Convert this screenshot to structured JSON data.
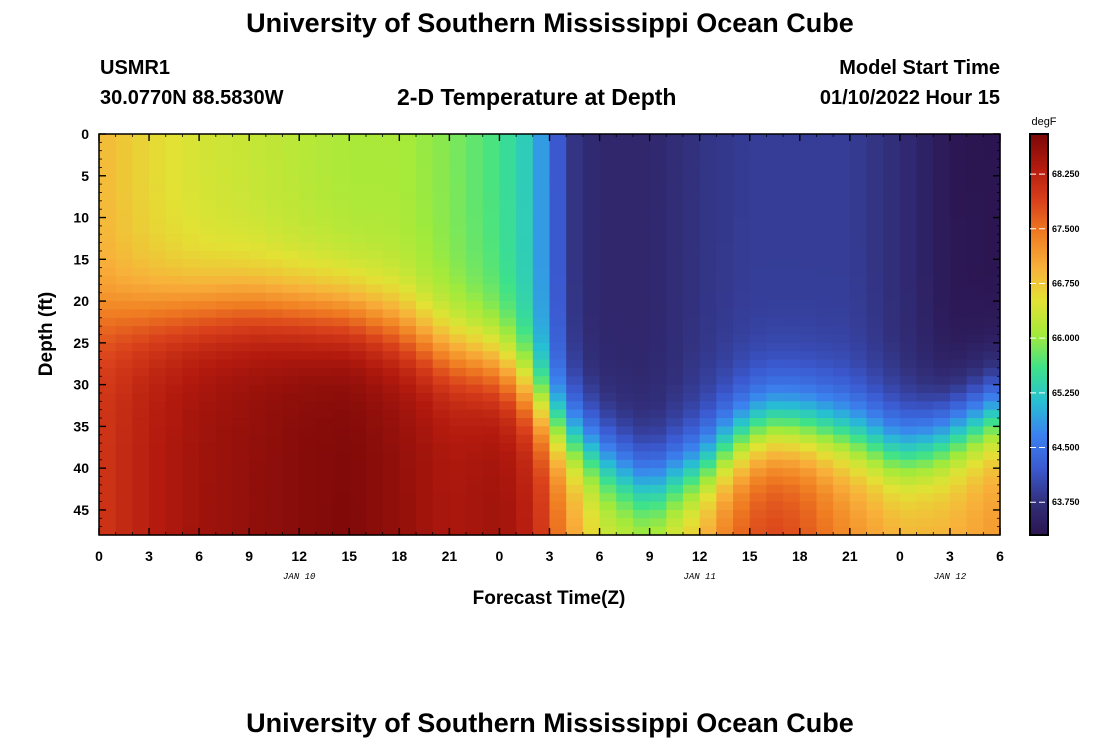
{
  "header": {
    "title_top": "University of Southern Mississippi Ocean Cube",
    "title_bottom": "University of Southern Mississippi Ocean Cube",
    "station_id": "USMR1",
    "coordinates": "30.0770N  88.5830W",
    "plot_title": "2-D Temperature at Depth",
    "model_start_label": "Model Start Time",
    "model_start_value": "01/10/2022 Hour 15"
  },
  "chart_data": {
    "type": "heatmap",
    "title": "2-D Temperature at Depth",
    "xlabel": "Forecast Time(Z)",
    "ylabel": "Depth (ft)",
    "x_tick_labels": [
      "0",
      "3",
      "6",
      "9",
      "12",
      "15",
      "18",
      "21",
      "0",
      "3",
      "6",
      "9",
      "12",
      "15",
      "18",
      "21",
      "0",
      "3",
      "6"
    ],
    "date_labels": [
      {
        "text": "JAN 10",
        "hour_index": 12
      },
      {
        "text": "JAN 11",
        "hour_index": 36
      },
      {
        "text": "JAN 12",
        "hour_index": 51
      }
    ],
    "x_range_hours": [
      0,
      54
    ],
    "y_tick_labels": [
      "0",
      "5",
      "10",
      "15",
      "20",
      "25",
      "30",
      "35",
      "40",
      "45"
    ],
    "y_tick_values": [
      0,
      5,
      10,
      15,
      20,
      25,
      30,
      35,
      40,
      45
    ],
    "ylim": [
      0,
      48
    ],
    "colorbar": {
      "unit": "degF",
      "min": 63.3,
      "max": 68.8,
      "tick_values": [
        63.75,
        64.5,
        65.25,
        66.0,
        66.75,
        67.5,
        68.25
      ],
      "tick_labels": [
        "63.750",
        "64.500",
        "65.250",
        "66.000",
        "66.750",
        "67.500",
        "68.250"
      ],
      "colors": [
        "#2b1550",
        "#32307c",
        "#3b5ad1",
        "#3b82ef",
        "#27c0d2",
        "#3ee28a",
        "#a3ea3a",
        "#e2e234",
        "#f8b03a",
        "#f07d22",
        "#d9401b",
        "#b31a0e",
        "#7a0808"
      ]
    },
    "grid_rows": 48,
    "grid_cols": 54
  }
}
